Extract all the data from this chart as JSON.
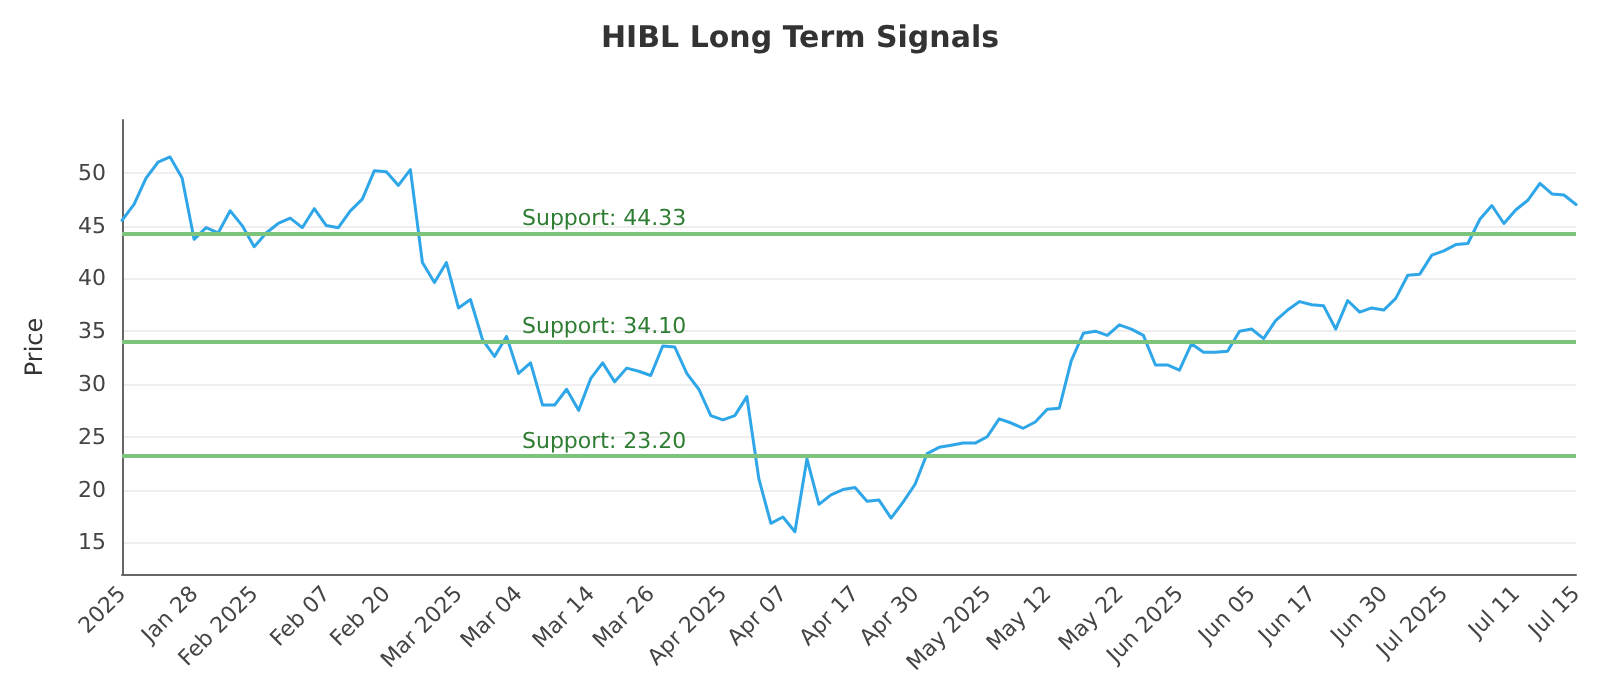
{
  "chart_data": {
    "type": "line",
    "title": "HIBL Long Term Signals",
    "ylabel": "Price",
    "categories": [
      "2025",
      null,
      null,
      null,
      null,
      null,
      "Jan 28",
      null,
      null,
      null,
      null,
      "Feb 2025",
      null,
      null,
      null,
      null,
      null,
      "Feb 07",
      null,
      null,
      null,
      null,
      "Feb 20",
      null,
      null,
      null,
      null,
      null,
      "Mar 2025",
      null,
      null,
      null,
      null,
      "Mar 04",
      null,
      null,
      null,
      null,
      null,
      "Mar 14",
      null,
      null,
      null,
      null,
      "Mar 26",
      null,
      null,
      null,
      null,
      null,
      "Apr 2025",
      null,
      null,
      null,
      null,
      "Apr 07",
      null,
      null,
      null,
      null,
      null,
      "Apr 17",
      null,
      null,
      null,
      null,
      "Apr 30",
      null,
      null,
      null,
      null,
      null,
      "May 2025",
      null,
      null,
      null,
      null,
      "May 12",
      null,
      null,
      null,
      null,
      null,
      "May 22",
      null,
      null,
      null,
      null,
      "Jun 2025",
      null,
      null,
      null,
      null,
      null,
      "Jun 05",
      null,
      null,
      null,
      null,
      "Jun 17",
      null,
      null,
      null,
      null,
      null,
      "Jun 30",
      null,
      null,
      null,
      null,
      "Jul 2025",
      null,
      null,
      null,
      null,
      null,
      "Jul 11",
      null,
      null,
      null,
      null,
      "Jul 15"
    ],
    "series": [
      {
        "color": "#2ea6e8",
        "values": [
          45.5,
          47,
          49.5,
          51,
          51.5,
          49.5,
          43.7,
          44.8,
          44.3,
          46.4,
          45,
          43,
          44.3,
          45.2,
          45.7,
          44.8,
          46.6,
          45,
          44.8,
          46.4,
          47.5,
          50.2,
          50.1,
          48.8,
          50.3,
          41.5,
          39.6,
          41.5,
          37.2,
          38,
          34.2,
          32.6,
          34.5,
          31,
          32,
          28,
          28,
          29.5,
          27.5,
          30.5,
          32,
          30.2,
          31.5,
          31.2,
          30.8,
          33.6,
          33.5,
          31,
          29.5,
          27,
          26.6,
          27,
          28.8,
          21,
          16.8,
          17.4,
          16,
          22.9,
          18.6,
          19.5,
          20,
          20.2,
          18.9,
          19,
          17.3,
          18.8,
          20.5,
          23.4,
          24,
          24.2,
          24.4,
          24.4,
          25,
          26.7,
          26.3,
          25.8,
          26.4,
          27.6,
          27.7,
          32.2,
          34.8,
          35,
          34.6,
          35.6,
          35.2,
          34.6,
          31.8,
          31.8,
          31.3,
          33.8,
          33,
          33,
          33.1,
          35,
          35.2,
          34.3,
          36,
          37,
          37.8,
          37.5,
          37.4,
          35.2,
          37.9,
          36.8,
          37.2,
          37,
          38.1,
          40.3,
          40.4,
          42.2,
          42.6,
          43.2,
          43.3,
          45.6,
          46.9,
          45.2,
          46.5,
          47.4,
          49,
          48,
          47.9,
          47
        ]
      }
    ],
    "ylim": [
      12,
      55
    ],
    "yticks": [
      15,
      20,
      25,
      30,
      35,
      40,
      45,
      50
    ],
    "grid": "y",
    "marker": "none",
    "line_style": "solid",
    "ref_lines": [
      {
        "axis": "y",
        "value": 44.33,
        "label": "Support: 44.33",
        "color": "#7cc47c"
      },
      {
        "axis": "y",
        "value": 34.1,
        "label": "Support: 34.10",
        "color": "#7cc47c"
      },
      {
        "axis": "y",
        "value": 23.2,
        "label": "Support: 23.20",
        "color": "#7cc47c"
      }
    ]
  }
}
